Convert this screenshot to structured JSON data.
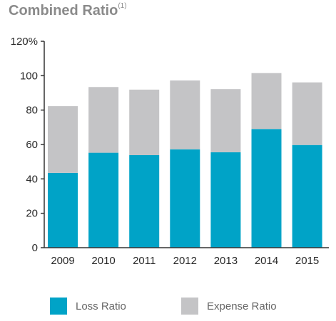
{
  "title": "Combined Ratio",
  "title_note": "(1)",
  "chart_data": {
    "type": "bar",
    "stacked": true,
    "categories": [
      "2009",
      "2010",
      "2011",
      "2012",
      "2013",
      "2014",
      "2015"
    ],
    "series": [
      {
        "name": "Loss Ratio",
        "color": "#00a3c7",
        "values": [
          43.5,
          55.2,
          53.8,
          57.2,
          55.5,
          69.0,
          59.7
        ]
      },
      {
        "name": "Expense Ratio",
        "color": "#c4c4c6",
        "values": [
          38.8,
          38.2,
          38.1,
          40.0,
          36.7,
          32.5,
          36.4
        ]
      }
    ],
    "yticks": [
      "0",
      "20",
      "40",
      "60",
      "80",
      "100",
      "120%"
    ],
    "ylim": [
      0,
      120
    ],
    "grid": false,
    "legend_position": "bottom"
  }
}
